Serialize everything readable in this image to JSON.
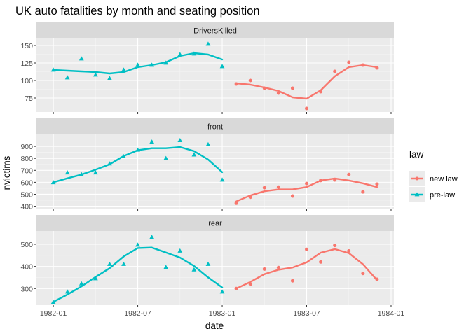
{
  "chart_data": {
    "type": "scatter",
    "title": "UK auto fatalities by month and seating position",
    "xlabel": "date",
    "ylabel": "nvictims",
    "x_ticks": [
      "1982-01",
      "1982-07",
      "1983-01",
      "1983-07",
      "1984-01"
    ],
    "grid": true,
    "legend": {
      "title": "law",
      "placement": "right",
      "items": [
        {
          "name": "new law",
          "color": "#F8766D",
          "shape": "circle"
        },
        {
          "name": "pre-law",
          "color": "#00BFC4",
          "shape": "triangle"
        }
      ]
    },
    "panels": [
      {
        "label": "DriversKilled",
        "ylim": [
          55,
          160
        ],
        "y_ticks": [
          75,
          100,
          125,
          150
        ],
        "series": [
          {
            "name": "pre-law",
            "dates": [
              "1982-01",
              "1982-02",
              "1982-03",
              "1982-04",
              "1982-05",
              "1982-06",
              "1982-07",
              "1982-08",
              "1982-09",
              "1982-10",
              "1982-11",
              "1982-12",
              "1983-01"
            ],
            "values": [
              115,
              104,
              131,
              108,
              103,
              115,
              122,
              122,
              125,
              137,
              138,
              152,
              120
            ],
            "smooth": [
              115,
              114,
              113,
              112,
              110,
              112,
              119,
              122,
              126,
              135,
              139,
              137,
              130
            ]
          },
          {
            "name": "new law",
            "dates": [
              "1983-02",
              "1983-03",
              "1983-04",
              "1983-05",
              "1983-06",
              "1983-07",
              "1983-08",
              "1983-09",
              "1983-10",
              "1983-11",
              "1983-12"
            ],
            "values": [
              95,
              100,
              89,
              82,
              89,
              60,
              84,
              113,
              126,
              122,
              118
            ],
            "smooth": [
              96,
              94,
              90,
              85,
              76,
              74,
              86,
              106,
              119,
              122,
              119
            ]
          }
        ]
      },
      {
        "label": "front",
        "ylim": [
          380,
          1000
        ],
        "y_ticks": [
          400,
          500,
          600,
          700,
          800,
          900
        ],
        "series": [
          {
            "name": "pre-law",
            "dates": [
              "1982-01",
              "1982-02",
              "1982-03",
              "1982-04",
              "1982-05",
              "1982-06",
              "1982-07",
              "1982-08",
              "1982-09",
              "1982-10",
              "1982-11",
              "1982-12",
              "1983-01"
            ],
            "values": [
              598,
              680,
              665,
              680,
              755,
              815,
              870,
              937,
              800,
              950,
              830,
              915,
              620
            ],
            "smooth": [
              600,
              633,
              665,
              705,
              750,
              820,
              868,
              885,
              885,
              895,
              860,
              790,
              685
            ]
          },
          {
            "name": "new law",
            "dates": [
              "1983-02",
              "1983-03",
              "1983-04",
              "1983-05",
              "1983-06",
              "1983-07",
              "1983-08",
              "1983-09",
              "1983-10",
              "1983-11",
              "1983-12"
            ],
            "values": [
              425,
              475,
              555,
              560,
              485,
              590,
              615,
              620,
              665,
              520,
              585
            ],
            "smooth": [
              440,
              490,
              525,
              540,
              540,
              560,
              615,
              632,
              615,
              592,
              560
            ]
          }
        ]
      },
      {
        "label": "rear",
        "ylim": [
          225,
          560
        ],
        "y_ticks": [
          300,
          400,
          500
        ],
        "series": [
          {
            "name": "pre-law",
            "dates": [
              "1982-01",
              "1982-02",
              "1982-03",
              "1982-04",
              "1982-05",
              "1982-06",
              "1982-07",
              "1982-08",
              "1982-09",
              "1982-10",
              "1982-11",
              "1982-12",
              "1983-01"
            ],
            "values": [
              238,
              285,
              322,
              345,
              410,
              410,
              497,
              532,
              396,
              470,
              385,
              410,
              285
            ],
            "smooth": [
              240,
              273,
              310,
              352,
              392,
              445,
              483,
              485,
              463,
              440,
              402,
              350,
              305
            ]
          },
          {
            "name": "new law",
            "dates": [
              "1983-02",
              "1983-03",
              "1983-04",
              "1983-05",
              "1983-06",
              "1983-07",
              "1983-08",
              "1983-09",
              "1983-10",
              "1983-11",
              "1983-12"
            ],
            "values": [
              300,
              320,
              388,
              395,
              335,
              477,
              420,
              495,
              470,
              368,
              342
            ],
            "smooth": [
              300,
              330,
              365,
              385,
              395,
              418,
              462,
              478,
              460,
              410,
              338
            ]
          }
        ]
      }
    ]
  }
}
